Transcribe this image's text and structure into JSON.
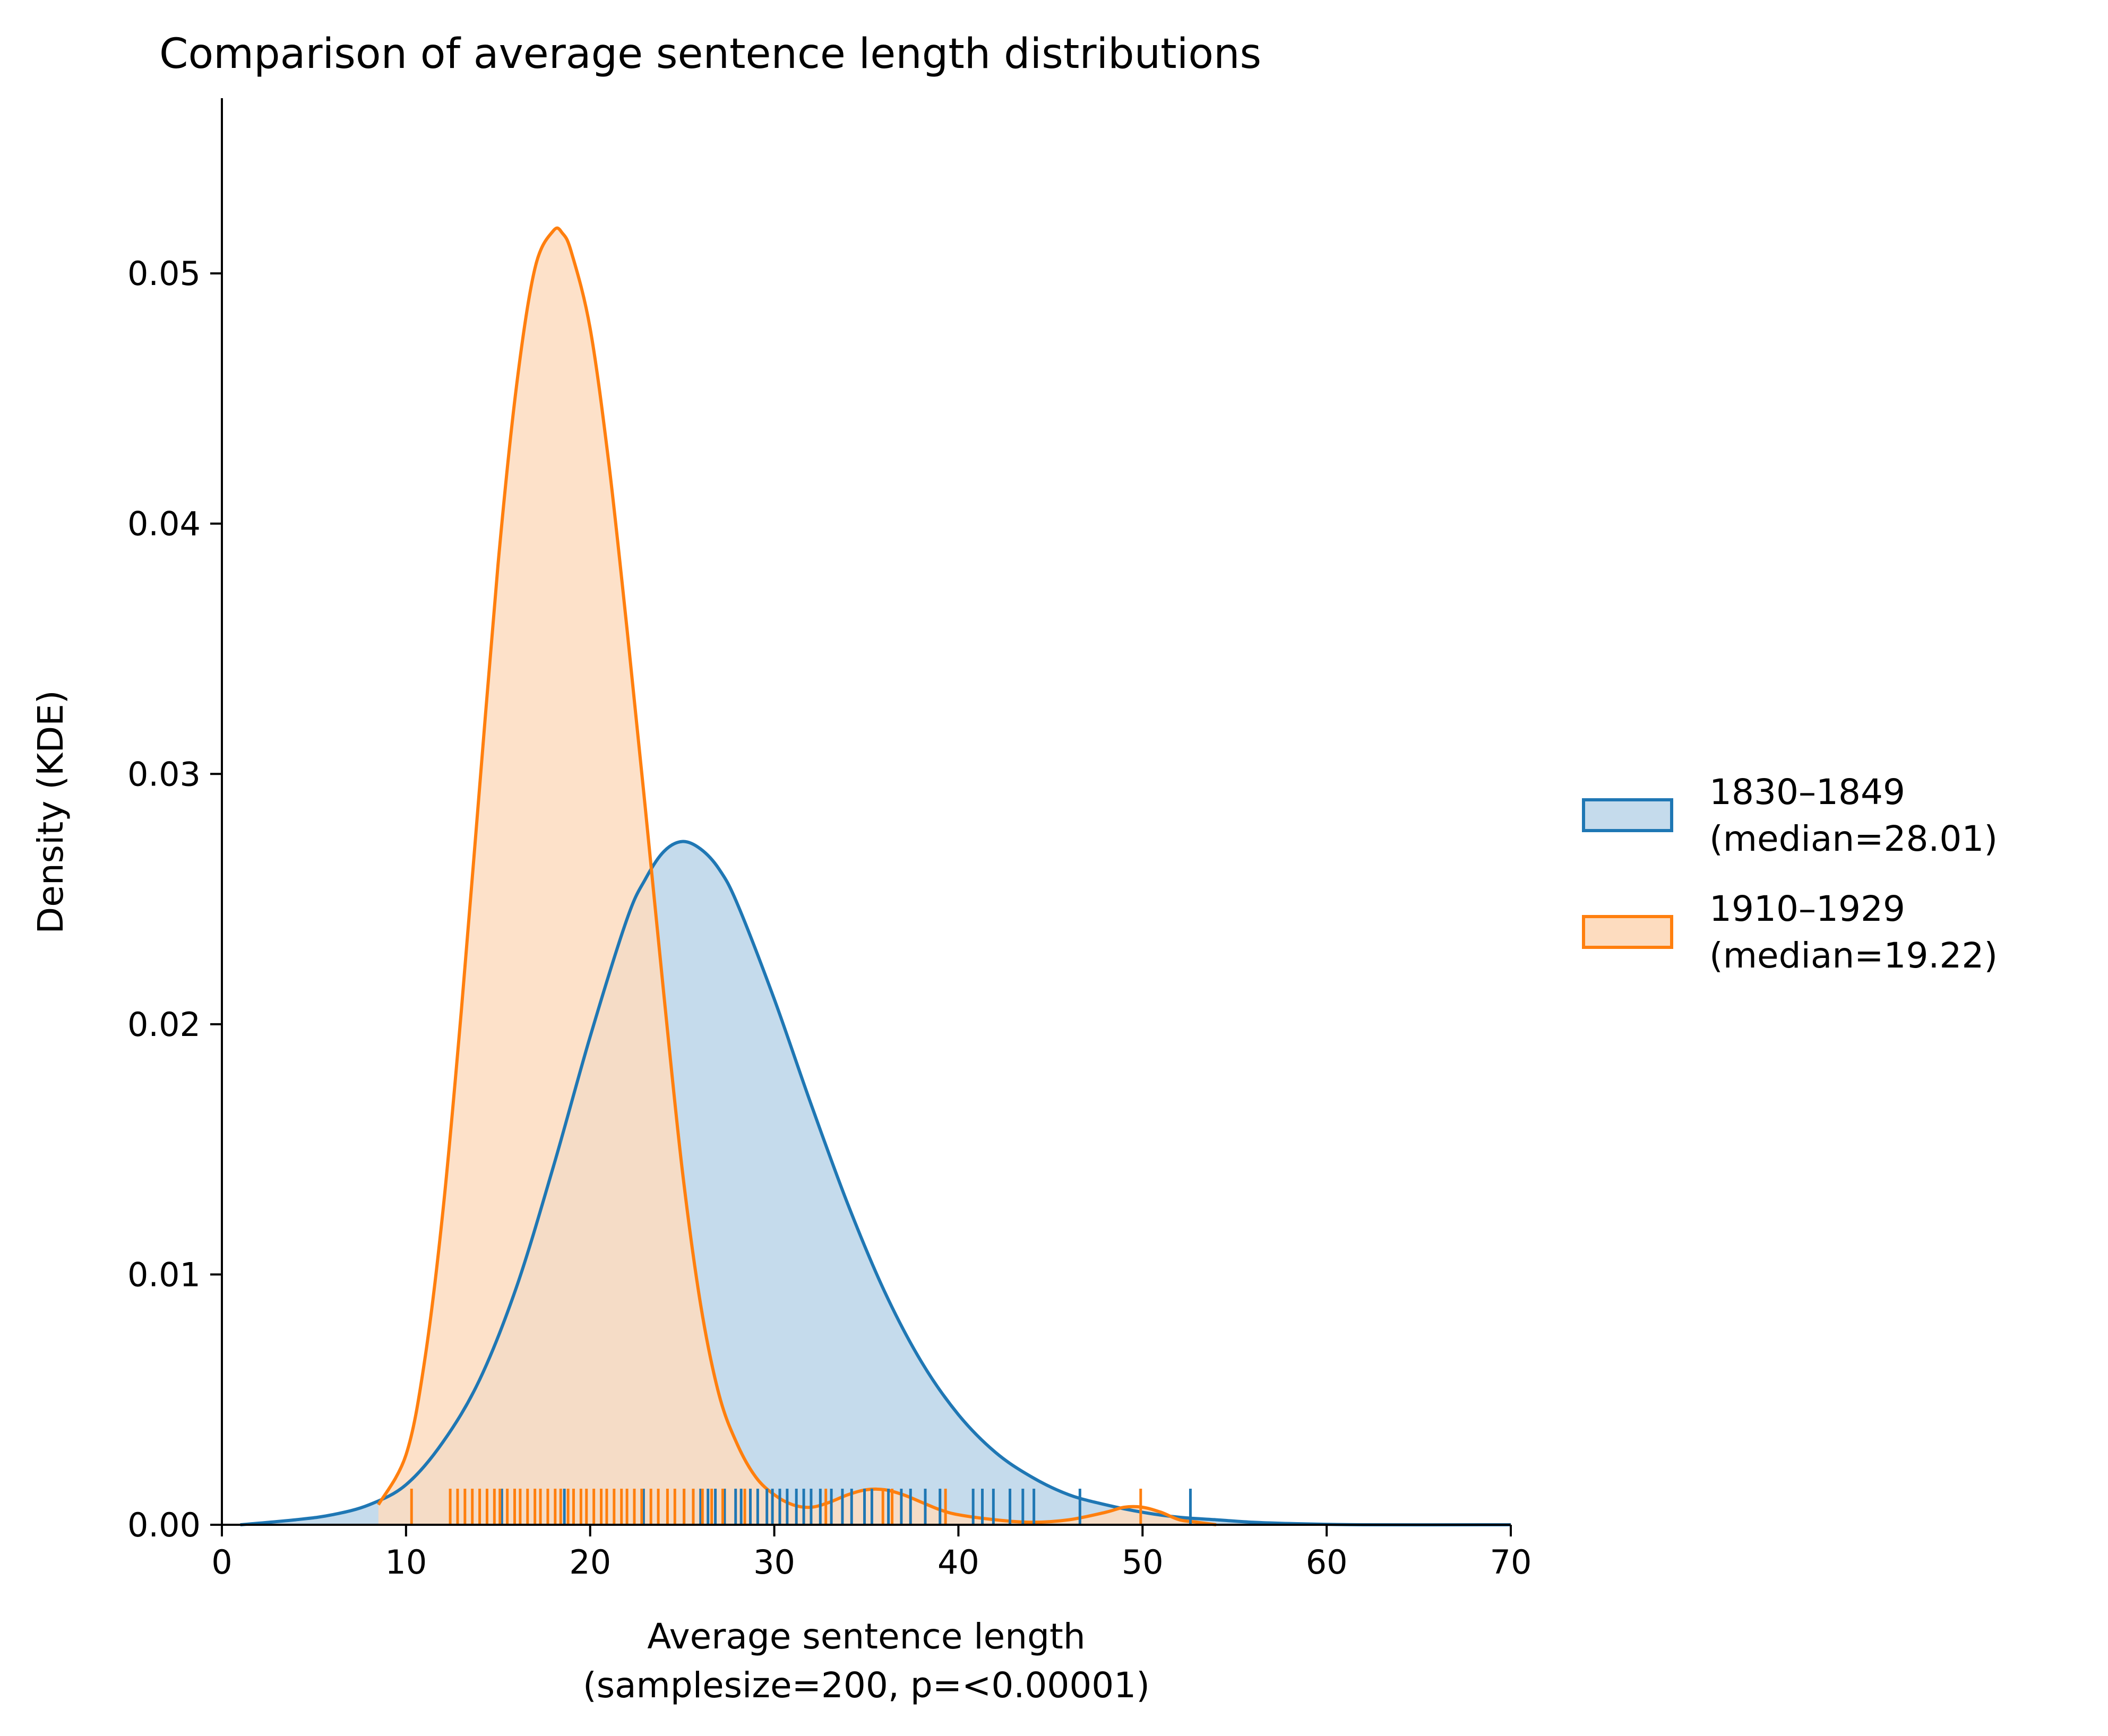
{
  "chart_data": {
    "type": "area",
    "title": "Comparison of average sentence length distributions",
    "xlabel": "Average sentence length",
    "xlabel_line2": "(samplesize=200, p=<0.00001)",
    "ylabel": "Density (KDE)",
    "xlim": [
      0,
      70
    ],
    "ylim": [
      0,
      0.057
    ],
    "xticks": [
      "0",
      "10",
      "20",
      "30",
      "40",
      "50",
      "60",
      "70"
    ],
    "yticks": [
      "0.00",
      "0.01",
      "0.02",
      "0.03",
      "0.04",
      "0.05"
    ],
    "grid": false,
    "legend_position": "right",
    "series": [
      {
        "name": "1830–1849",
        "legend_sub": "(median=28.01)",
        "color": "#1f77b4",
        "fill": "#c5dbec",
        "kde": [
          [
            1,
            0.0
          ],
          [
            4,
            0.0002
          ],
          [
            6,
            0.0004
          ],
          [
            8,
            0.0008
          ],
          [
            10,
            0.0016
          ],
          [
            12,
            0.0033
          ],
          [
            14,
            0.0058
          ],
          [
            16,
            0.0095
          ],
          [
            18,
            0.0143
          ],
          [
            20,
            0.0195
          ],
          [
            22,
            0.0242
          ],
          [
            23,
            0.0258
          ],
          [
            24,
            0.0269
          ],
          [
            25,
            0.0273
          ],
          [
            26,
            0.027
          ],
          [
            27,
            0.0262
          ],
          [
            28,
            0.0248
          ],
          [
            30,
            0.021
          ],
          [
            32,
            0.0168
          ],
          [
            34,
            0.0128
          ],
          [
            36,
            0.0093
          ],
          [
            38,
            0.0065
          ],
          [
            40,
            0.0044
          ],
          [
            42,
            0.0029
          ],
          [
            44,
            0.0019
          ],
          [
            46,
            0.0012
          ],
          [
            48,
            0.0008
          ],
          [
            50,
            0.0005
          ],
          [
            52,
            0.0003
          ],
          [
            54,
            0.0002
          ],
          [
            56,
            0.0001
          ],
          [
            58,
            5e-05
          ],
          [
            62,
            0.0
          ],
          [
            70,
            0.0
          ]
        ],
        "rug": [
          15.2,
          18.6,
          22.9,
          25.1,
          25.6,
          26.0,
          26.4,
          26.8,
          27.3,
          27.9,
          28.2,
          28.7,
          29.1,
          29.6,
          29.9,
          30.3,
          30.7,
          31.2,
          31.6,
          32.0,
          32.5,
          33.1,
          33.7,
          34.2,
          34.9,
          35.3,
          36.2,
          36.9,
          37.4,
          38.2,
          39.0,
          40.8,
          41.3,
          41.9,
          42.8,
          43.5,
          44.1,
          46.6,
          52.6
        ]
      },
      {
        "name": "1910–1929",
        "legend_sub": "(median=19.22)",
        "color": "#ff7f0e",
        "fill": "#fddcbf",
        "kde": [
          [
            8.5,
            0.0008
          ],
          [
            10,
            0.0028
          ],
          [
            11,
            0.0065
          ],
          [
            12,
            0.0125
          ],
          [
            13,
            0.0205
          ],
          [
            14,
            0.0295
          ],
          [
            15,
            0.0384
          ],
          [
            16,
            0.0455
          ],
          [
            17,
            0.0502
          ],
          [
            18,
            0.0517
          ],
          [
            18.5,
            0.0516
          ],
          [
            19,
            0.0508
          ],
          [
            20,
            0.0478
          ],
          [
            21,
            0.0425
          ],
          [
            22,
            0.0358
          ],
          [
            23,
            0.0286
          ],
          [
            24,
            0.0212
          ],
          [
            25,
            0.0142
          ],
          [
            26,
            0.0088
          ],
          [
            27,
            0.0052
          ],
          [
            28,
            0.0032
          ],
          [
            29,
            0.0019
          ],
          [
            30,
            0.0012
          ],
          [
            31,
            0.0008
          ],
          [
            32,
            0.0007
          ],
          [
            33,
            0.0009
          ],
          [
            34,
            0.0012
          ],
          [
            35,
            0.0014
          ],
          [
            36,
            0.0014
          ],
          [
            37,
            0.0012
          ],
          [
            38,
            0.0009
          ],
          [
            39,
            0.0006
          ],
          [
            40,
            0.0004
          ],
          [
            42,
            0.0002
          ],
          [
            44,
            0.0001
          ],
          [
            46,
            0.0002
          ],
          [
            48,
            0.0005
          ],
          [
            49,
            0.0007
          ],
          [
            50,
            0.0007
          ],
          [
            51,
            0.0005
          ],
          [
            52,
            0.0002
          ],
          [
            53,
            0.0001
          ],
          [
            54,
            0.0
          ]
        ],
        "rug": [
          10.3,
          12.4,
          12.8,
          13.2,
          13.6,
          14.0,
          14.4,
          14.8,
          15.1,
          15.5,
          15.9,
          16.2,
          16.6,
          17.0,
          17.3,
          17.7,
          18.1,
          18.4,
          18.8,
          19.1,
          19.5,
          19.8,
          20.2,
          20.6,
          20.9,
          21.3,
          21.7,
          22.0,
          22.4,
          22.8,
          23.3,
          23.7,
          24.2,
          24.6,
          25.1,
          25.6,
          26.1,
          26.6,
          27.2,
          28.4,
          32.8,
          35.9,
          36.4,
          39.3,
          49.9
        ]
      }
    ]
  }
}
